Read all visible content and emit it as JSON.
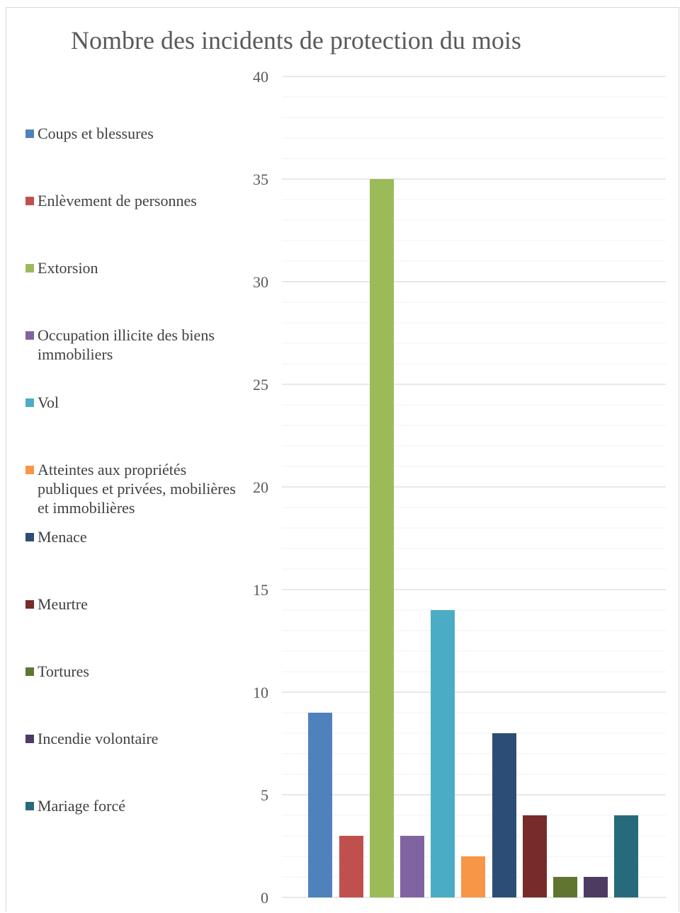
{
  "chart_data": {
    "type": "bar",
    "title": "Nombre des incidents de protection du mois",
    "xlabel": "",
    "ylabel": "",
    "ylim": [
      0,
      40
    ],
    "yticks": [
      "0",
      "5",
      "10",
      "15",
      "20",
      "25",
      "30",
      "35",
      "40"
    ],
    "grid": "major and minor horizontal gridlines",
    "legend_position": "left",
    "series": [
      {
        "name": "Coups et blessures",
        "value": 9,
        "color": "#4F81BD"
      },
      {
        "name": "Enlèvement de personnes",
        "value": 3,
        "color": "#C0504D"
      },
      {
        "name": "Extorsion",
        "value": 35,
        "color": "#9BBB59"
      },
      {
        "name": "Occupation illicite des biens immobiliers",
        "value": 3,
        "color": "#8064A2"
      },
      {
        "name": "Vol",
        "value": 14,
        "color": "#4BACC6"
      },
      {
        "name": "Atteintes aux propriétés publiques et privées, mobilières et immobilières",
        "value": 2,
        "color": "#F79646"
      },
      {
        "name": "Menace",
        "value": 8,
        "color": "#2C4D75"
      },
      {
        "name": "Meurtre",
        "value": 4,
        "color": "#772C2A"
      },
      {
        "name": "Tortures",
        "value": 1,
        "color": "#5F7530"
      },
      {
        "name": "Incendie volontaire",
        "value": 1,
        "color": "#4D3B62"
      },
      {
        "name": "Mariage forcé",
        "value": 4,
        "color": "#276A7C"
      }
    ]
  }
}
